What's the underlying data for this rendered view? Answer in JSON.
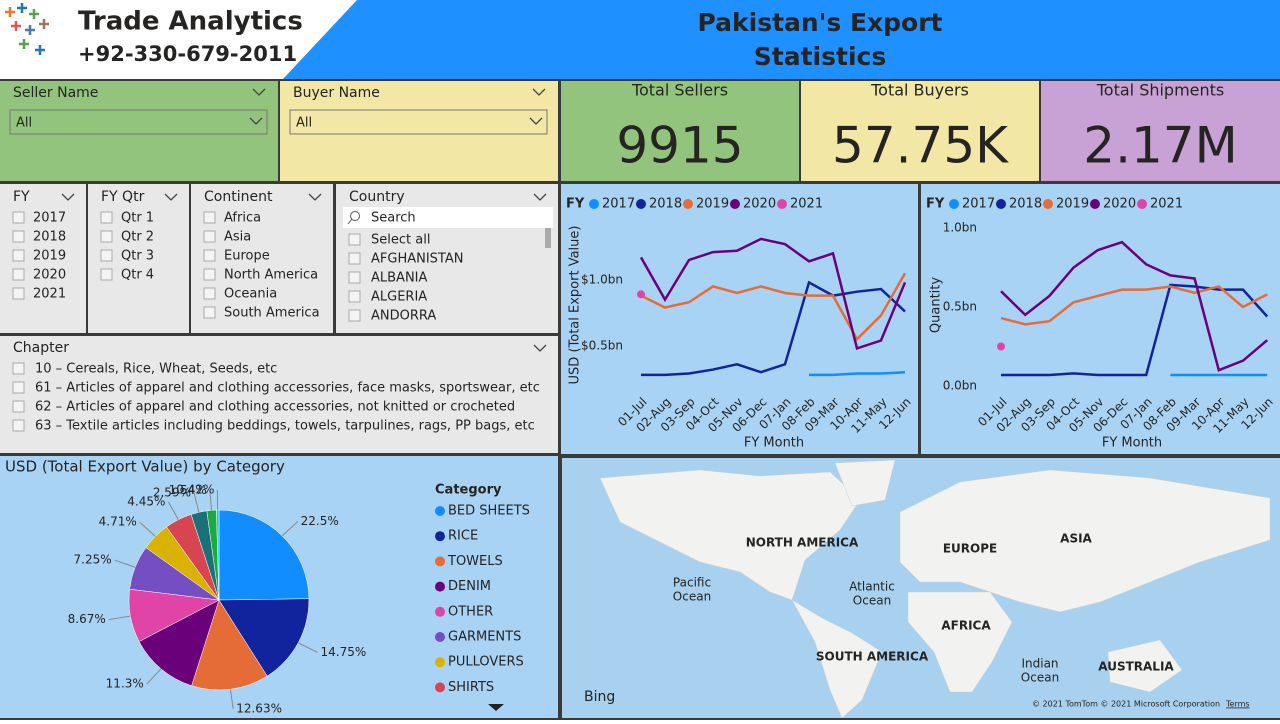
{
  "header": {
    "brand": "Trade Analytics",
    "phone": "+92-330-679-2011",
    "title_line1": "Pakistan's Export",
    "title_line2": "Statistics"
  },
  "filters": [
    {
      "label": "Seller Name",
      "value": "All"
    },
    {
      "label": "Buyer Name",
      "value": "All"
    }
  ],
  "kpis": [
    {
      "label": "Total Sellers",
      "value": "9915"
    },
    {
      "label": "Total Buyers",
      "value": "57.75K"
    },
    {
      "label": "Total Shipments",
      "value": "2.17M"
    }
  ],
  "slicers": [
    {
      "title": "FY",
      "items": [
        "2017",
        "2018",
        "2019",
        "2020",
        "2021"
      ]
    },
    {
      "title": "FY Qtr",
      "items": [
        "Qtr 1",
        "Qtr 2",
        "Qtr 3",
        "Qtr 4"
      ]
    },
    {
      "title": "Continent",
      "items": [
        "Africa",
        "Asia",
        "Europe",
        "North America",
        "Oceania",
        "South America"
      ]
    }
  ],
  "country_slicer": {
    "title": "Country",
    "search": "Search",
    "items": [
      "Select all",
      "AFGHANISTAN",
      "ALBANIA",
      "ALGERIA",
      "ANDORRA"
    ]
  },
  "chapter_slicer": {
    "title": "Chapter",
    "items": [
      "10 – Cereals, Rice, Wheat, Seeds, etc",
      "61 – Articles of apparel and clothing accessories, face masks, sportswear, etc",
      "62 – Articles of apparel and clothing accessories, not knitted or crocheted",
      "63 – Textile articles including beddings, towels, tarpulines, rags, PP bags, etc"
    ]
  },
  "map": {
    "continents": [
      "NORTH AMERICA",
      "EUROPE",
      "ASIA",
      "AFRICA",
      "SOUTH AMERICA",
      "AUSTRALIA"
    ],
    "oceans": [
      [
        "Pacific",
        "Ocean"
      ],
      [
        "Atlantic",
        "Ocean"
      ],
      [
        "Indian",
        "Ocean"
      ]
    ],
    "provider": "Bing",
    "attribution": "© 2021 TomTom  © 2021 Microsoft Corporation",
    "terms": "Terms"
  },
  "chart_data": [
    {
      "type": "line",
      "legend_title": "FY",
      "x_label": "FY Month",
      "y_label": "USD (Total Export Value)",
      "categories": [
        "01-Jul",
        "02-Aug",
        "03-Sep",
        "04-Oct",
        "05-Nov",
        "06-Dec",
        "07-Jan",
        "08-Feb",
        "09-Mar",
        "10-Apr",
        "11-May",
        "12-Jun"
      ],
      "ylim": [
        0.15,
        1.4
      ],
      "yticks": [
        {
          "value": 0.5,
          "label": "$0.5bn"
        },
        {
          "value": 1.0,
          "label": "$1.0bn"
        }
      ],
      "series": [
        {
          "name": "2017",
          "color": "#118DFF",
          "values": [
            null,
            null,
            null,
            null,
            null,
            null,
            null,
            0.28,
            0.28,
            0.29,
            0.29,
            0.3
          ]
        },
        {
          "name": "2018",
          "color": "#12239E",
          "values": [
            0.28,
            0.28,
            0.29,
            0.32,
            0.36,
            0.3,
            0.36,
            0.98,
            0.88,
            0.91,
            0.93,
            0.76
          ]
        },
        {
          "name": "2019",
          "color": "#E66C37",
          "values": [
            0.88,
            0.79,
            0.83,
            0.95,
            0.9,
            0.95,
            0.9,
            0.88,
            0.88,
            0.55,
            0.73,
            1.05
          ]
        },
        {
          "name": "2020",
          "color": "#6B007B",
          "values": [
            1.17,
            0.85,
            1.15,
            1.21,
            1.22,
            1.31,
            1.27,
            1.14,
            1.2,
            0.48,
            0.54,
            0.98
          ]
        },
        {
          "name": "2021",
          "color": "#E044A7",
          "values": [
            0.89,
            null,
            null,
            null,
            null,
            null,
            null,
            null,
            null,
            null,
            null,
            null
          ]
        }
      ]
    },
    {
      "type": "line",
      "legend_title": "FY",
      "x_label": "FY Month",
      "y_label": "Quantity",
      "categories": [
        "01-Jul",
        "02-Aug",
        "03-Sep",
        "04-Oct",
        "05-Nov",
        "06-Dec",
        "07-Jan",
        "08-Feb",
        "09-Mar",
        "10-Apr",
        "11-May",
        "12-Jun"
      ],
      "ylim": [
        0,
        1.0
      ],
      "yticks": [
        {
          "value": 0,
          "label": "0.0bn"
        },
        {
          "value": 0.5,
          "label": "0.5bn"
        },
        {
          "value": 1.0,
          "label": "1.0bn"
        }
      ],
      "series": [
        {
          "name": "2017",
          "color": "#118DFF",
          "values": [
            null,
            null,
            null,
            null,
            null,
            null,
            null,
            0.07,
            0.07,
            0.07,
            0.07,
            0.07
          ]
        },
        {
          "name": "2018",
          "color": "#12239E",
          "values": [
            0.07,
            0.07,
            0.07,
            0.08,
            0.07,
            0.07,
            0.07,
            0.64,
            0.63,
            0.61,
            0.61,
            0.44
          ]
        },
        {
          "name": "2019",
          "color": "#E66C37",
          "values": [
            0.43,
            0.39,
            0.41,
            0.53,
            0.57,
            0.61,
            0.61,
            0.63,
            0.59,
            0.63,
            0.5,
            0.58
          ]
        },
        {
          "name": "2020",
          "color": "#6B007B",
          "values": [
            0.6,
            0.45,
            0.57,
            0.75,
            0.86,
            0.91,
            0.77,
            0.7,
            0.68,
            0.1,
            0.16,
            0.29
          ]
        },
        {
          "name": "2021",
          "color": "#E044A7",
          "values": [
            0.25,
            null,
            null,
            null,
            null,
            null,
            null,
            null,
            null,
            null,
            null,
            null
          ]
        }
      ]
    },
    {
      "type": "pie",
      "title": "USD (Total Export Value) by Category",
      "legend_title": "Category",
      "categories": [
        "BED SHEETS",
        "RICE",
        "TOWELS",
        "DENIM",
        "OTHER",
        "GARMENTS",
        "PULLOVERS",
        "SHIRTS",
        null,
        null,
        null
      ],
      "values": [
        22.5,
        14.75,
        12.63,
        11.3,
        8.67,
        7.25,
        4.71,
        4.45,
        2.59,
        1.54,
        0.42
      ],
      "value_labels": [
        "22.5%",
        "14.75%",
        "12.63%",
        "11.3%",
        "8.67%",
        "7.25%",
        "4.71%",
        "4.45%",
        "2.59%",
        "1.54%",
        "0.42%"
      ],
      "colors": [
        "#118DFF",
        "#12239E",
        "#E66C37",
        "#6B007B",
        "#E044A7",
        "#744EC2",
        "#D9B300",
        "#D64550",
        "#197278",
        "#1AAB40",
        "#15C6F4"
      ]
    }
  ]
}
